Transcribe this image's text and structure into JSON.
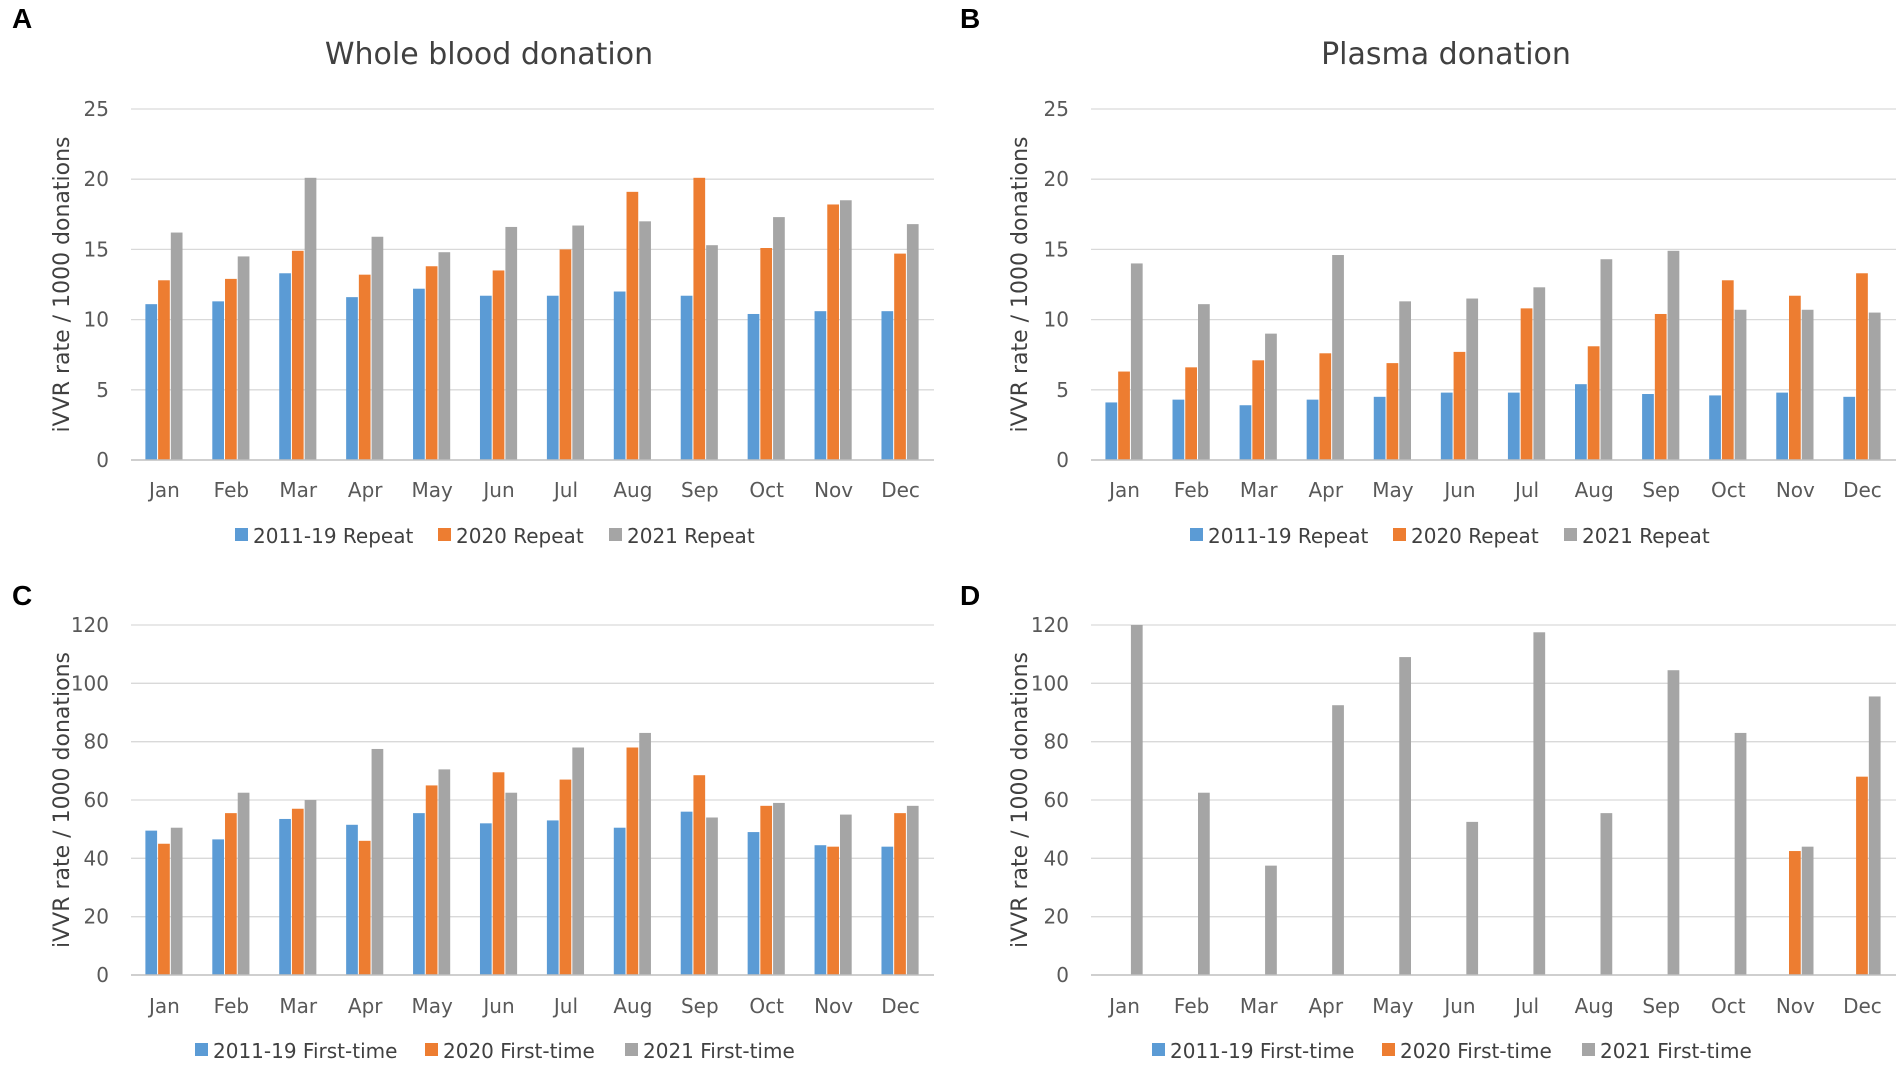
{
  "colors": {
    "series_2011_19": "#5b9bd5",
    "series_2020": "#ed7d31",
    "series_2021": "#a5a5a5"
  },
  "chart_data": [
    {
      "panel": "A",
      "type": "bar",
      "title": "Whole blood donation",
      "ylabel": "iVVR rate / 1000 donations",
      "xlabel": "",
      "ylim": [
        0,
        25
      ],
      "yticks": [
        0,
        5,
        10,
        15,
        20,
        25
      ],
      "grid": true,
      "legend": "bottom",
      "categories": [
        "Jan",
        "Feb",
        "Mar",
        "Apr",
        "May",
        "Jun",
        "Jul",
        "Aug",
        "Sep",
        "Oct",
        "Nov",
        "Dec"
      ],
      "series": [
        {
          "name": "2011-19 Repeat",
          "values": [
            11.1,
            11.3,
            13.3,
            11.6,
            12.2,
            11.7,
            11.7,
            12.0,
            11.7,
            10.4,
            10.6,
            10.6
          ]
        },
        {
          "name": "2020 Repeat",
          "values": [
            12.8,
            12.9,
            14.9,
            13.2,
            13.8,
            13.5,
            15.0,
            19.1,
            20.1,
            15.1,
            18.2,
            14.7
          ]
        },
        {
          "name": "2021 Repeat",
          "values": [
            16.2,
            14.5,
            20.1,
            15.9,
            14.8,
            16.6,
            16.7,
            17.0,
            15.3,
            17.3,
            18.5,
            16.8
          ]
        }
      ]
    },
    {
      "panel": "B",
      "type": "bar",
      "title": "Plasma donation",
      "ylabel": "iVVR rate / 1000 donations",
      "xlabel": "",
      "ylim": [
        0,
        25
      ],
      "yticks": [
        0,
        5,
        10,
        15,
        20,
        25
      ],
      "grid": true,
      "legend": "bottom",
      "categories": [
        "Jan",
        "Feb",
        "Mar",
        "Apr",
        "May",
        "Jun",
        "Jul",
        "Aug",
        "Sep",
        "Oct",
        "Nov",
        "Dec"
      ],
      "series": [
        {
          "name": "2011-19 Repeat",
          "values": [
            4.1,
            4.3,
            3.9,
            4.3,
            4.5,
            4.8,
            4.8,
            5.4,
            4.7,
            4.6,
            4.8,
            4.5
          ]
        },
        {
          "name": "2020 Repeat",
          "values": [
            6.3,
            6.6,
            7.1,
            7.6,
            6.9,
            7.7,
            10.8,
            8.1,
            10.4,
            12.8,
            11.7,
            13.3
          ]
        },
        {
          "name": "2021 Repeat",
          "values": [
            14.0,
            11.1,
            9.0,
            14.6,
            11.3,
            11.5,
            12.3,
            14.3,
            14.9,
            10.7,
            10.7,
            10.5
          ]
        }
      ]
    },
    {
      "panel": "C",
      "type": "bar",
      "title": "",
      "ylabel": "iVVR rate / 1000 donations",
      "xlabel": "",
      "ylim": [
        0,
        120
      ],
      "yticks": [
        0,
        20,
        40,
        60,
        80,
        100,
        120
      ],
      "grid": true,
      "legend": "bottom",
      "categories": [
        "Jan",
        "Feb",
        "Mar",
        "Apr",
        "May",
        "Jun",
        "Jul",
        "Aug",
        "Sep",
        "Oct",
        "Nov",
        "Dec"
      ],
      "series": [
        {
          "name": "2011-19 First-time",
          "values": [
            49.5,
            46.5,
            53.5,
            51.5,
            55.5,
            52.0,
            53.0,
            50.5,
            56.0,
            49.0,
            44.5,
            44.0
          ]
        },
        {
          "name": "2020 First-time",
          "values": [
            45.0,
            55.5,
            57.0,
            46.0,
            65.0,
            69.5,
            67.0,
            78.0,
            68.5,
            58.0,
            44.0,
            55.5
          ]
        },
        {
          "name": "2021 First-time",
          "values": [
            50.5,
            62.5,
            60.0,
            77.5,
            70.5,
            62.5,
            78.0,
            83.0,
            54.0,
            59.0,
            55.0,
            58.0
          ]
        }
      ]
    },
    {
      "panel": "D",
      "type": "bar",
      "title": "",
      "ylabel": "iVVR rate / 1000 donations",
      "xlabel": "",
      "ylim": [
        0,
        120
      ],
      "yticks": [
        0,
        20,
        40,
        60,
        80,
        100,
        120
      ],
      "grid": true,
      "legend": "bottom",
      "categories": [
        "Jan",
        "Feb",
        "Mar",
        "Apr",
        "May",
        "Jun",
        "Jul",
        "Aug",
        "Sep",
        "Oct",
        "Nov",
        "Dec"
      ],
      "series": [
        {
          "name": "2011-19 First-time",
          "values": [
            0,
            0,
            0,
            0,
            0,
            0,
            0,
            0,
            0,
            0,
            0,
            0
          ]
        },
        {
          "name": "2020 First-time",
          "values": [
            0,
            0,
            0,
            0,
            0,
            0,
            0,
            0,
            0,
            0,
            42.5,
            68.0
          ]
        },
        {
          "name": "2021 First-time",
          "values": [
            120.0,
            62.5,
            37.5,
            92.5,
            109.0,
            52.5,
            117.5,
            55.5,
            104.5,
            83.0,
            44.0,
            95.5
          ]
        }
      ]
    }
  ]
}
